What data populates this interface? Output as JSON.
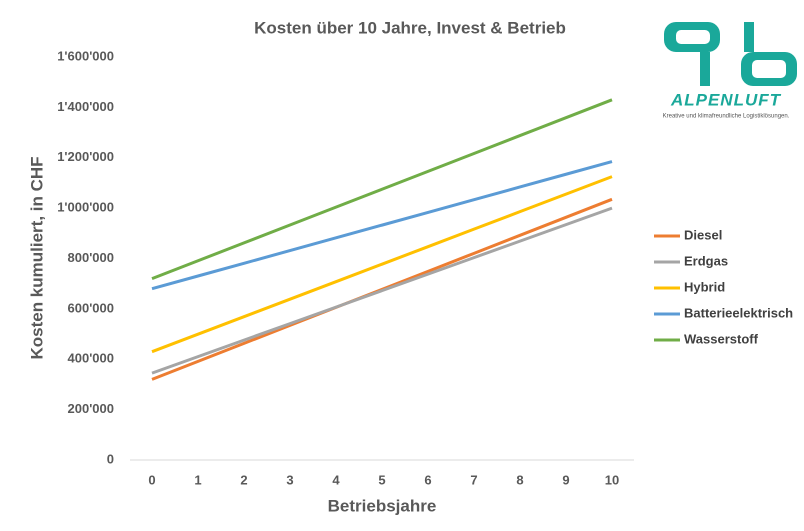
{
  "chart_data": {
    "type": "line",
    "title": "Kosten über 10 Jahre, Invest & Betrieb",
    "x_label": "Betriebsjahre",
    "y_label": "Kosten kumuliert, in CHF",
    "x": [
      0,
      1,
      2,
      3,
      4,
      5,
      6,
      7,
      8,
      9,
      10
    ],
    "xlim": [
      0,
      10
    ],
    "xticks": [
      0,
      1,
      2,
      3,
      4,
      5,
      6,
      7,
      8,
      9,
      10
    ],
    "ylim": [
      0,
      1600000
    ],
    "yticks": [
      0,
      {
        "value": 200000,
        "label": "200'000"
      },
      {
        "value": 400000,
        "label": "400'000"
      },
      {
        "value": 600000,
        "label": "600'000"
      },
      {
        "value": 800000,
        "label": "800'000"
      },
      {
        "value": 1000000,
        "label": "1'000'000"
      },
      {
        "value": 1200000,
        "label": "1'200'000"
      },
      {
        "value": 1400000,
        "label": "1'400'000"
      },
      {
        "value": 1600000,
        "label": "1'600'000"
      }
    ],
    "grid": false,
    "legend": "right",
    "series": [
      {
        "name": "Diesel",
        "color": "#ed7d31",
        "values": [
          320000,
          391500,
          463000,
          534500,
          606000,
          677500,
          749000,
          820500,
          892000,
          963500,
          1035000
        ]
      },
      {
        "name": "Erdgas",
        "color": "#a5a5a5",
        "values": [
          345000,
          410500,
          476000,
          541500,
          607000,
          672500,
          738000,
          803500,
          869000,
          934500,
          1000000
        ]
      },
      {
        "name": "Hybrid",
        "color": "#ffc000",
        "values": [
          430000,
          499500,
          569000,
          638500,
          708000,
          777500,
          847000,
          916500,
          986000,
          1055500,
          1125000
        ]
      },
      {
        "name": "Batterieelektrisch",
        "color": "#5b9bd5",
        "values": [
          680000,
          730500,
          781000,
          831500,
          882000,
          932500,
          983000,
          1033500,
          1084000,
          1134500,
          1185000
        ]
      },
      {
        "name": "Wasserstoff",
        "color": "#70ad47",
        "values": [
          720000,
          791000,
          862000,
          933000,
          1004000,
          1075000,
          1146000,
          1217000,
          1288000,
          1359000,
          1430000
        ]
      }
    ]
  },
  "logo": {
    "name": "ALPENLUFT",
    "tagline": "Kreative und klimafreundliche Logistiklösungen."
  }
}
